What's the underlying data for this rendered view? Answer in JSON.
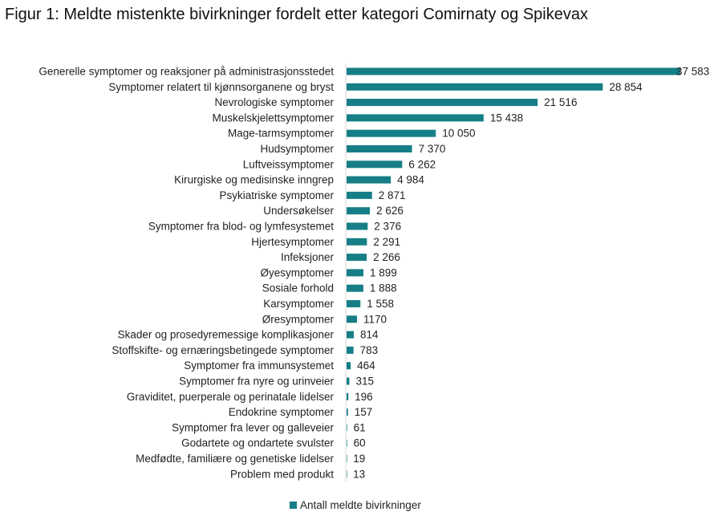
{
  "chart_data": {
    "type": "bar",
    "orientation": "horizontal",
    "title": "Figur 1: Meldte mistenkte bivirkninger fordelt etter kategori Comirnaty og Spikevax",
    "categories": [
      "Generelle symptomer og reaksjoner på administrasjonsstedet",
      "Symptomer relatert til kjønnsorganene og bryst",
      "Nevrologiske symptomer",
      "Muskelskjelettsymptomer",
      "Mage-tarmsymptomer",
      "Hudsymptomer",
      "Luftveissymptomer",
      "Kirurgiske og medisinske inngrep",
      "Psykiatriske symptomer",
      "Undersøkelser",
      "Symptomer fra blod- og lymfesystemet",
      "Hjertesymptomer",
      "Infeksjoner",
      "Øyesymptomer",
      "Sosiale forhold",
      "Karsymptomer",
      "Øresymptomer",
      "Skader og prosedyremessige komplikasjoner",
      "Stoffskifte- og ernæringsbetingede symptomer",
      "Symptomer fra immunsystemet",
      "Symptomer fra nyre og urinveier",
      "Graviditet, puerperale og perinatale lidelser",
      "Endokrine symptomer",
      "Symptomer fra lever og galleveier",
      "Godartete og ondartete svulster",
      "Medfødte, familiære og genetiske lidelser",
      "Problem med produkt"
    ],
    "series": [
      {
        "name": "Antall meldte bivirkninger",
        "color": "#167e86",
        "values": [
          37583,
          28854,
          21516,
          15438,
          10050,
          7370,
          6262,
          4984,
          2871,
          2626,
          2376,
          2291,
          2266,
          1899,
          1888,
          1558,
          1170,
          814,
          783,
          464,
          315,
          196,
          157,
          61,
          60,
          19,
          13
        ],
        "value_labels": [
          "37 583",
          "28 854",
          "21 516",
          "15 438",
          "10 050",
          "7 370",
          "6 262",
          "4 984",
          "2 871",
          "2 626",
          "2 376",
          "2 291",
          "2 266",
          "1 899",
          "1 888",
          "1 558",
          "1170",
          "814",
          "783",
          "464",
          "315",
          "196",
          "157",
          "61",
          "60",
          "19",
          "13"
        ]
      }
    ],
    "xlim": [
      0,
      38000
    ],
    "grid": false,
    "axis_line_color": "#d9d9d9",
    "legend_position": "bottom-center"
  }
}
